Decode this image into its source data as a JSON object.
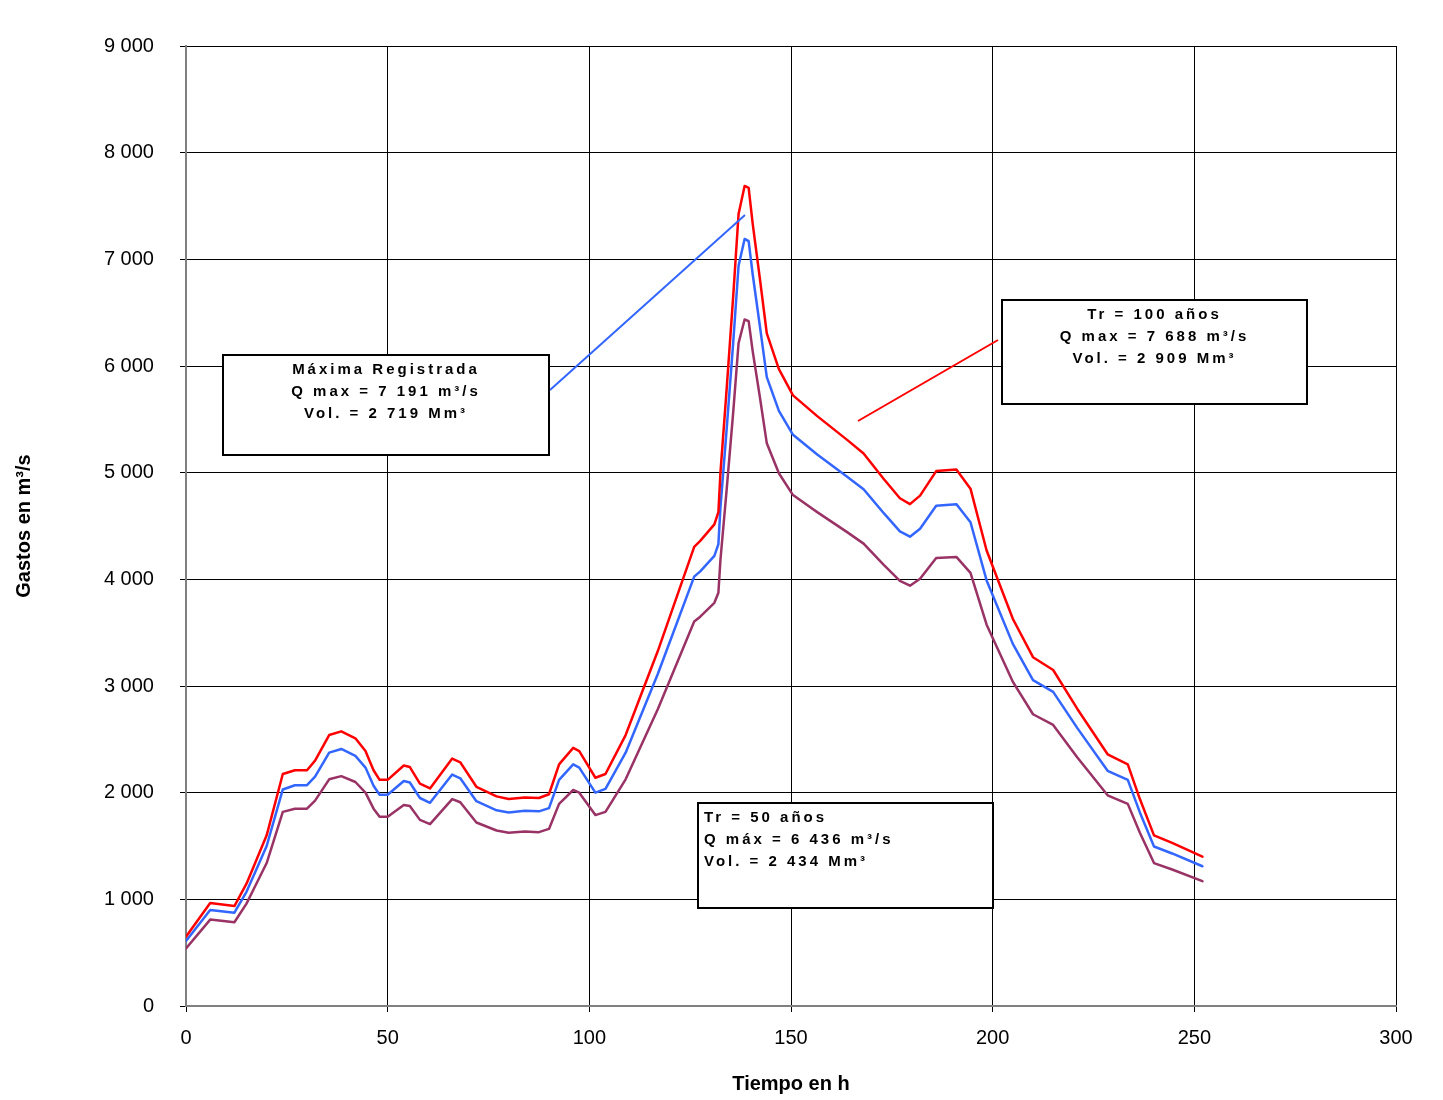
{
  "chart_data": {
    "type": "line",
    "xlabel": "Tiempo en h",
    "ylabel": "Gastos en m³/s",
    "xlim": [
      0,
      300
    ],
    "xticks": [
      0,
      50,
      100,
      150,
      200,
      250,
      300
    ],
    "ylim": [
      0,
      9000
    ],
    "yticks": [
      0,
      {
        "value": 1000,
        "label": "1 000"
      },
      {
        "value": 2000,
        "label": "2 000"
      },
      {
        "value": 3000,
        "label": "3 000"
      },
      {
        "value": 4000,
        "label": "4 000"
      },
      {
        "value": 5000,
        "label": "5 000"
      },
      {
        "value": 6000,
        "label": "6 000"
      },
      {
        "value": 7000,
        "label": "7 000"
      },
      {
        "value": 8000,
        "label": "8 000"
      },
      {
        "value": 9000,
        "label": "9 000"
      }
    ],
    "grid": true,
    "legend": false,
    "marker": "none",
    "line_style": "solid",
    "x": [
      0,
      6,
      12,
      15,
      20,
      24,
      27,
      30,
      32,
      35.5,
      38.5,
      42,
      44.5,
      46.5,
      48,
      50,
      54,
      55.5,
      58,
      60.5,
      66,
      68,
      72,
      77,
      80,
      84,
      87.5,
      90,
      92.5,
      96,
      97.5,
      101.5,
      104,
      109,
      117,
      126,
      127.5,
      131,
      132,
      132.5,
      134,
      135.7,
      137,
      138.5,
      139.5,
      140.5,
      142.3,
      144,
      147,
      150.5,
      156.5,
      164,
      168,
      173,
      177,
      179.5,
      182,
      186,
      191,
      194.5,
      198.5,
      205,
      210,
      215,
      221,
      228.5,
      233.5,
      236.5,
      240,
      244.5,
      252
    ],
    "series": [
      {
        "color": "#ff0000",
        "values": [
          650,
          965,
          937,
          1147,
          1600,
          2175,
          2210,
          2210,
          2300,
          2540,
          2575,
          2510,
          2390,
          2210,
          2120,
          2120,
          2255,
          2240,
          2085,
          2040,
          2320,
          2285,
          2055,
          1965,
          1940,
          1955,
          1950,
          1985,
          2265,
          2420,
          2390,
          2140,
          2175,
          2540,
          3330,
          4305,
          4360,
          4515,
          4630,
          4995,
          5760,
          6670,
          7425,
          7688,
          7670,
          7335,
          6815,
          6305,
          5970,
          5725,
          5530,
          5305,
          5180,
          4940,
          4760,
          4705,
          4785,
          5015,
          5030,
          4850,
          4270,
          3630,
          3270,
          3150,
          2785,
          2360,
          2265,
          1940,
          1600,
          1530,
          1400
        ]
      },
      {
        "color": "#3366ff",
        "values": [
          610,
          900,
          875,
          1070,
          1500,
          2030,
          2070,
          2070,
          2150,
          2375,
          2410,
          2345,
          2235,
          2065,
          1980,
          1980,
          2110,
          2095,
          1950,
          1905,
          2170,
          2135,
          1920,
          1835,
          1815,
          1830,
          1825,
          1855,
          2120,
          2265,
          2235,
          2000,
          2035,
          2375,
          3115,
          4025,
          4075,
          4220,
          4330,
          4670,
          5385,
          6235,
          6940,
          7191,
          7170,
          6860,
          6370,
          5895,
          5580,
          5355,
          5170,
          4960,
          4845,
          4620,
          4450,
          4400,
          4475,
          4690,
          4705,
          4535,
          3990,
          3395,
          3055,
          2945,
          2605,
          2205,
          2120,
          1815,
          1495,
          1430,
          1310
        ]
      },
      {
        "color": "#993366",
        "values": [
          540,
          810,
          785,
          960,
          1340,
          1820,
          1850,
          1850,
          1925,
          2125,
          2155,
          2100,
          2000,
          1850,
          1775,
          1775,
          1885,
          1875,
          1745,
          1705,
          1940,
          1910,
          1720,
          1645,
          1625,
          1635,
          1630,
          1660,
          1895,
          2025,
          2000,
          1790,
          1820,
          2125,
          2785,
          3605,
          3650,
          3780,
          3875,
          4180,
          4820,
          5580,
          6215,
          6436,
          6420,
          6140,
          5705,
          5275,
          4995,
          4790,
          4630,
          4440,
          4335,
          4135,
          3985,
          3940,
          4005,
          4200,
          4210,
          4060,
          3575,
          3040,
          2735,
          2635,
          2330,
          1975,
          1895,
          1625,
          1340,
          1280,
          1170
        ]
      }
    ],
    "annotations": [
      "Máxima Registrada\nQ max = 7 191 m³/s\nVol. = 2 719 Mm³",
      "Tr = 100 años\nQ max = 7 688 m³/s\nVol. = 2 909 Mm³",
      "Tr = 50 años\nQ máx = 6 436 m³/s\nVol. = 2 434 Mm³"
    ]
  }
}
